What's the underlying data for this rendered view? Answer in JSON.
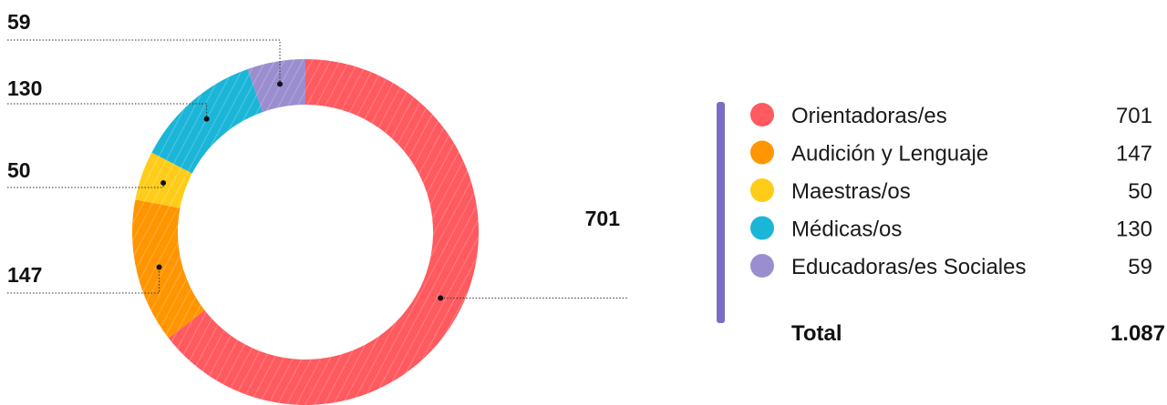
{
  "chart_data": {
    "type": "pie",
    "title": "",
    "categories": [
      "Orientadoras/es",
      "Audición y Lenguaje",
      "Maestras/os",
      "Médicas/os",
      "Educadoras/es Sociales"
    ],
    "values": [
      701,
      147,
      50,
      130,
      59
    ],
    "value_labels": [
      "701",
      "147",
      "50",
      "130",
      "59"
    ],
    "colors": [
      "#ff5a5f",
      "#ff9500",
      "#ffcc1a",
      "#1bb5d8",
      "#9b8ed0"
    ],
    "legend_placement": "right",
    "total_label": "Total",
    "total_value": "1.087"
  },
  "accent": {
    "legend_bar": "#7a6cc4"
  }
}
